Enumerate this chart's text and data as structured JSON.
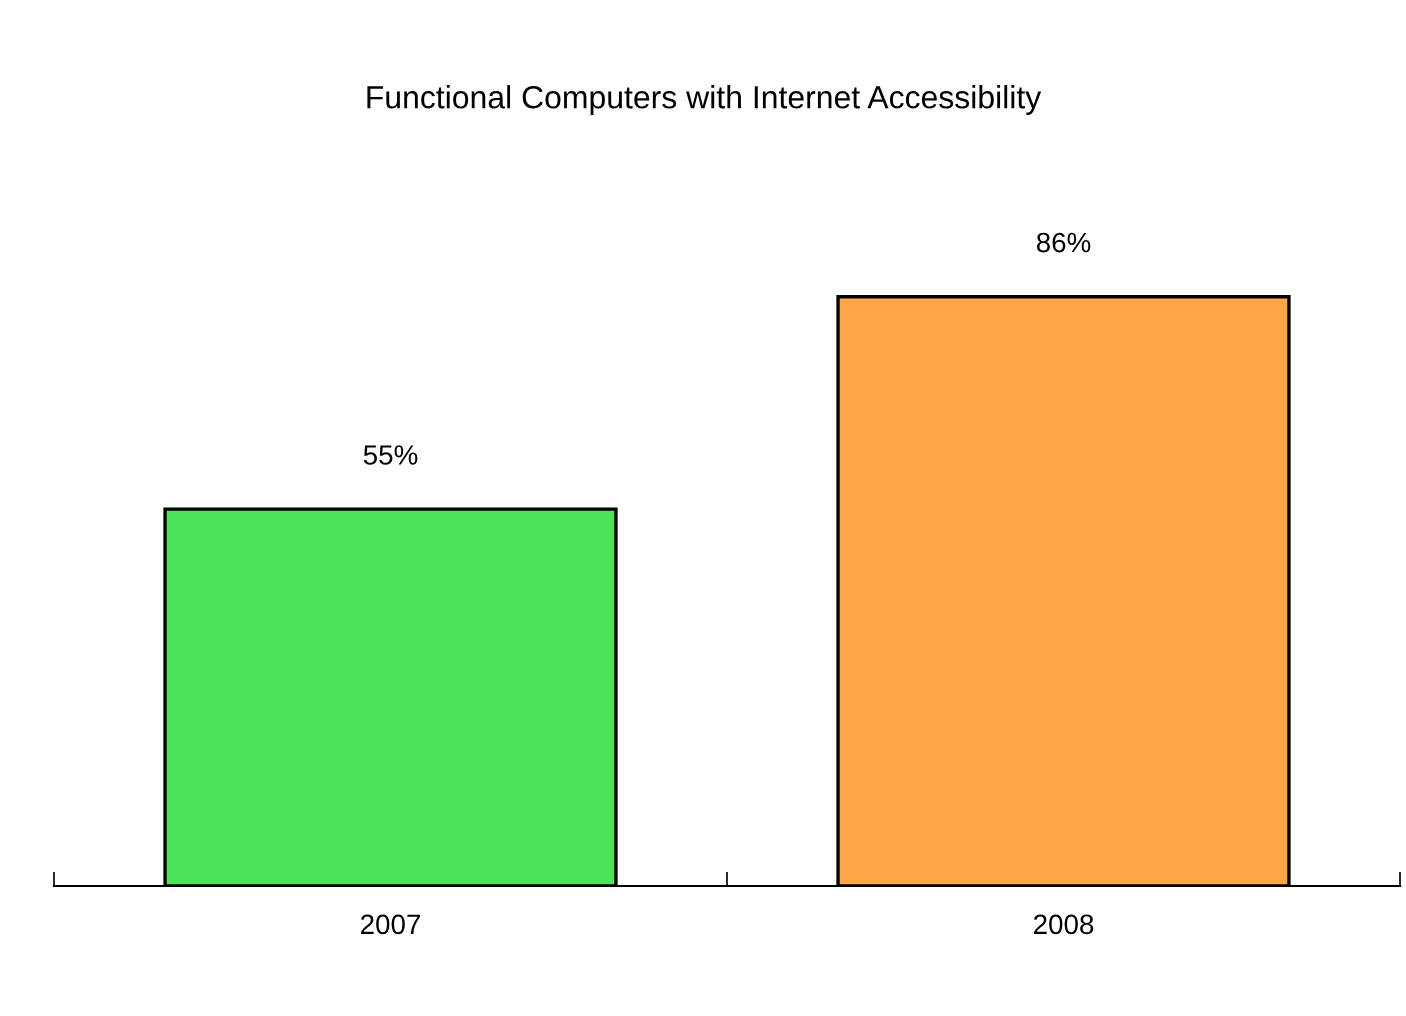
{
  "chart_data": {
    "type": "bar",
    "title": "Functional Computers with Internet Accessibility",
    "categories": [
      "2007",
      "2008"
    ],
    "values": [
      55,
      86
    ],
    "colors": [
      "#4fe35a",
      "#fda647"
    ],
    "value_labels": [
      "55%",
      "86%"
    ],
    "grid": false,
    "legend": false
  }
}
